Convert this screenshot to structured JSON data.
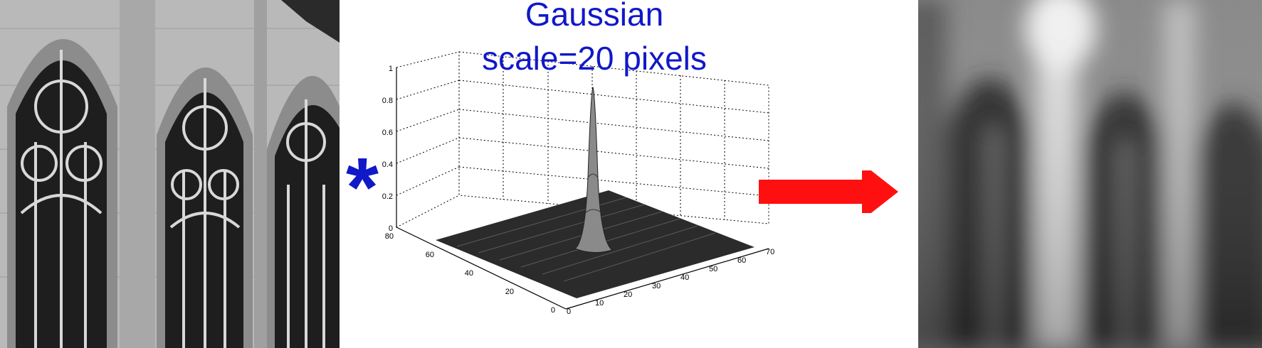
{
  "title": {
    "line1": "Gaussian",
    "line2": "scale=20 pixels"
  },
  "operator": "*",
  "kernel_plot": {
    "z_ticks": [
      "0",
      "0.2",
      "0.4",
      "0.6",
      "0.8",
      "1"
    ],
    "x_ticks": [
      "0",
      "10",
      "20",
      "30",
      "40",
      "50",
      "60",
      "70"
    ],
    "y_ticks": [
      "0",
      "20",
      "40",
      "60",
      "80"
    ]
  },
  "icons": {
    "arrow": "right-arrow-icon",
    "arrow_color": "#ff1010",
    "text_color": "#1018c8"
  }
}
